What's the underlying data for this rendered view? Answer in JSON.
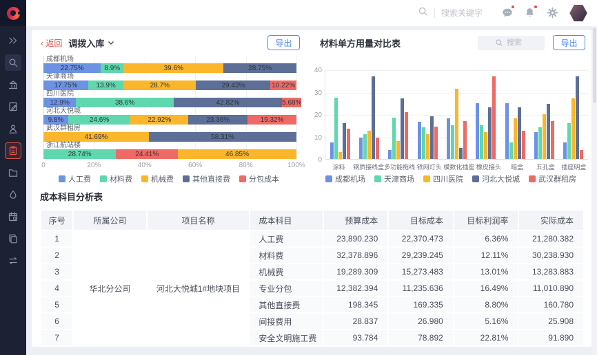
{
  "header": {
    "search_placeholder": "搜索关键字",
    "icons": [
      {
        "name": "chat-icon",
        "badge": true
      },
      {
        "name": "bell-icon",
        "badge": true
      },
      {
        "name": "gear-icon",
        "badge": false
      }
    ]
  },
  "sidebar": {
    "items": [
      {
        "icon": "expand-icon",
        "boxed": false,
        "active": false
      },
      {
        "icon": "search-icon",
        "boxed": true,
        "active": false
      },
      {
        "icon": "building-icon",
        "boxed": false,
        "active": false
      },
      {
        "icon": "document-edit-icon",
        "boxed": false,
        "active": false
      },
      {
        "icon": "user-icon",
        "boxed": false,
        "active": false
      },
      {
        "icon": "clipboard-icon",
        "boxed": false,
        "active": true
      },
      {
        "icon": "folder-icon",
        "boxed": false,
        "active": false
      },
      {
        "icon": "drop-icon",
        "boxed": false,
        "active": false
      },
      {
        "icon": "calendar-gear-icon",
        "boxed": false,
        "active": false
      },
      {
        "icon": "copy-icon",
        "boxed": false,
        "active": false
      },
      {
        "icon": "transfer-icon",
        "boxed": false,
        "active": false
      }
    ]
  },
  "left_panel": {
    "back_arrow": "‹",
    "back_label": "返回",
    "title": "调拨入库",
    "export_label": "导出"
  },
  "right_panel": {
    "title": "材料单方用量对比表",
    "search_placeholder": "搜索",
    "export_label": "导出"
  },
  "table": {
    "title": "成本科目分析表",
    "columns": [
      "序号",
      "所属公司",
      "项目名称",
      "成本科目",
      "预算成本",
      "目标成本",
      "目标利润率",
      "实际成本"
    ],
    "company": "华北分公司",
    "project": "河北大悦城1#地块项目",
    "rows": [
      {
        "index": "1",
        "subject": "人工费",
        "budget": "23,890.230",
        "target": "22,370.473",
        "margin": "6.36%",
        "actual": "21,280.382"
      },
      {
        "index": "2",
        "subject": "材料费",
        "budget": "32,378.896",
        "target": "29,239.245",
        "margin": "12.11%",
        "actual": "30,238.930"
      },
      {
        "index": "3",
        "subject": "机械费",
        "budget": "19,289.309",
        "target": "15,273.483",
        "margin": "13.01%",
        "actual": "13,283.883"
      },
      {
        "index": "4",
        "subject": "专业分包",
        "budget": "12,382.394",
        "target": "11,235.636",
        "margin": "16.49%",
        "actual": "11,010.890"
      },
      {
        "index": "5",
        "subject": "其他直接费",
        "budget": "198.345",
        "target": "169.335",
        "margin": "8.80%",
        "actual": "160.780"
      },
      {
        "index": "6",
        "subject": "间接费用",
        "budget": "28.837",
        "target": "26.980",
        "margin": "5.16%",
        "actual": "25.908"
      },
      {
        "index": "7",
        "subject": "安全文明施工费",
        "budget": "93.784",
        "target": "78.892",
        "margin": "22.81%",
        "actual": "91.890"
      }
    ]
  },
  "colors": {
    "accent_blue": "#4e8cf5",
    "back_red": "#e05653",
    "active_red": "#d9534b",
    "palette": [
      "#6C92E4",
      "#60D7AE",
      "#FBB62B",
      "#5D6F97",
      "#EE6A65"
    ]
  },
  "chart_data": [
    {
      "type": "bar",
      "variant": "horizontal-stacked-percent",
      "title": "调拨入库",
      "categories": [
        "成都机场",
        "天津商场",
        "四川医院",
        "河北大悦城",
        "武汉群租房",
        "浙江航站楼"
      ],
      "legend": [
        "人工费",
        "材料费",
        "机械费",
        "其他直接费",
        "分包成本"
      ],
      "legend_position": "bottom",
      "series_colors": {
        "人工费": "#6C92E4",
        "材料费": "#60D7AE",
        "机械费": "#FBB62B",
        "其他直接费": "#5D6F97",
        "分包成本": "#EE6A65"
      },
      "xlim": [
        0,
        100
      ],
      "xticks": [
        "0",
        "20%",
        "40%",
        "60%",
        "80%",
        "100%"
      ],
      "rows": [
        {
          "category": "成都机场",
          "segments": [
            {
              "series": "人工费",
              "value": 22.75
            },
            {
              "series": "材料费",
              "value": 8.9
            },
            {
              "series": "机械费",
              "value": 39.6
            },
            {
              "series": "其他直接费",
              "value": 28.75
            }
          ]
        },
        {
          "category": "天津商场",
          "segments": [
            {
              "series": "人工费",
              "value": 17.75
            },
            {
              "series": "材料费",
              "value": 13.9
            },
            {
              "series": "机械费",
              "value": 28.7
            },
            {
              "series": "其他直接费",
              "value": 29.43
            },
            {
              "series": "分包成本",
              "value": 10.22
            }
          ]
        },
        {
          "category": "四川医院",
          "segments": [
            {
              "series": "人工费",
              "value": 12.9
            },
            {
              "series": "材料费",
              "value": 38.6
            },
            {
              "series": "其他直接费",
              "value": 42.82
            },
            {
              "series": "分包成本",
              "value": 5.68
            }
          ]
        },
        {
          "category": "河北大悦城",
          "segments": [
            {
              "series": "人工费",
              "value": 9.8
            },
            {
              "series": "材料费",
              "value": 24.6
            },
            {
              "series": "机械费",
              "value": 22.92
            },
            {
              "series": "其他直接费",
              "value": 23.36
            },
            {
              "series": "分包成本",
              "value": 19.32
            }
          ]
        },
        {
          "category": "武汉群租房",
          "segments": [
            {
              "series": "机械费",
              "value": 41.69
            },
            {
              "series": "其他直接费",
              "value": 58.31
            }
          ]
        },
        {
          "category": "浙江航站楼",
          "segments": [
            {
              "series": "材料费",
              "value": 28.74
            },
            {
              "series": "分包成本",
              "value": 24.41
            },
            {
              "series": "机械费",
              "value": 46.85
            }
          ]
        }
      ]
    },
    {
      "type": "bar",
      "variant": "grouped-vertical",
      "title": "材料单方用量对比表",
      "categories": [
        "涂料",
        "钢质接线盒",
        "多功能拖线",
        "铁网灯头",
        "模数化插座",
        "橡皮接头",
        "暗盒",
        "五孔盒",
        "插座明盒"
      ],
      "ylim": [
        0,
        40
      ],
      "yticks": [
        0,
        10,
        20,
        30,
        40
      ],
      "grid": true,
      "legend_position": "bottom",
      "series": [
        {
          "name": "成都机场",
          "color": "#6C92E4",
          "values": [
            7.5,
            9.5,
            4,
            16.5,
            18,
            25,
            25,
            12,
            7.5
          ]
        },
        {
          "name": "天津商场",
          "color": "#60D7AE",
          "values": [
            27.5,
            11,
            18.5,
            14,
            15,
            15,
            7.5,
            14,
            16
          ]
        },
        {
          "name": "四川医院",
          "color": "#FBB62B",
          "values": [
            3,
            12.5,
            8,
            11,
            31.5,
            12,
            18,
            20,
            27
          ]
        },
        {
          "name": "河北大悦城",
          "color": "#5D6F97",
          "values": [
            16,
            37,
            27,
            19,
            5,
            23,
            23,
            24.5,
            37
          ]
        },
        {
          "name": "武汉群租房",
          "color": "#EE6A65",
          "values": [
            13.5,
            9.5,
            21,
            14.5,
            17,
            37,
            12.5,
            17,
            4
          ]
        }
      ]
    }
  ]
}
